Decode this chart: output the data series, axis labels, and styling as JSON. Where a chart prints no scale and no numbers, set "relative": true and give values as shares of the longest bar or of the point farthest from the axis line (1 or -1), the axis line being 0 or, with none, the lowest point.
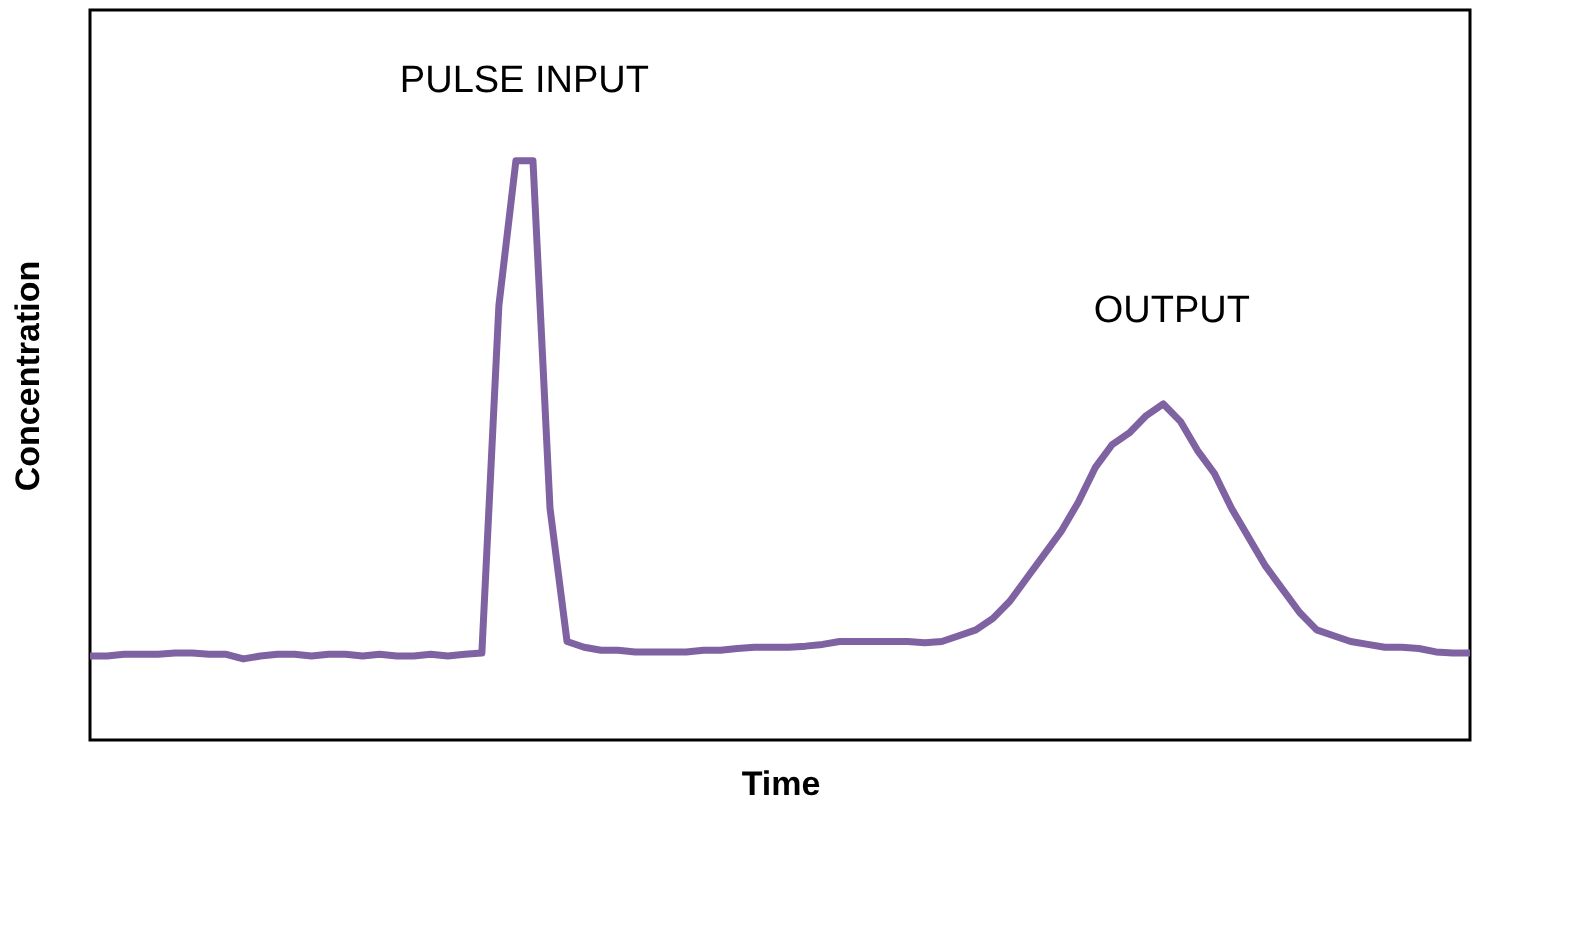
{
  "chart_data": {
    "type": "line",
    "relative": true,
    "xlabel": "Time",
    "ylabel": "Concentration",
    "color": "#7f62a1",
    "grid": false,
    "annotations": [
      "PULSE INPUT",
      "OUTPUT"
    ],
    "categories": [
      null,
      null,
      null,
      null,
      null,
      null,
      null,
      null,
      null,
      null,
      null,
      null,
      null,
      null,
      null,
      null,
      null,
      null,
      null,
      null,
      null,
      null,
      null,
      null,
      null,
      null,
      null,
      null,
      null,
      null,
      null,
      null,
      null,
      null,
      null,
      null,
      null,
      null,
      null,
      null,
      null,
      null,
      null,
      null,
      null,
      null,
      null,
      null,
      null,
      null,
      null,
      null,
      null,
      null,
      null,
      null,
      null,
      null,
      null,
      null,
      null,
      null,
      null,
      null,
      null,
      null,
      null,
      null,
      null,
      null,
      null,
      null,
      null,
      null,
      null,
      null,
      null,
      null,
      null,
      null,
      null,
      null
    ],
    "values": [
      0.145,
      0.145,
      0.148,
      0.148,
      0.148,
      0.15,
      0.15,
      0.148,
      0.148,
      0.14,
      0.145,
      0.148,
      0.148,
      0.145,
      0.148,
      0.148,
      0.145,
      0.148,
      0.145,
      0.145,
      0.148,
      0.145,
      0.148,
      0.15,
      0.75,
      1,
      1,
      0.4,
      0.17,
      0.16,
      0.155,
      0.155,
      0.152,
      0.152,
      0.152,
      0.152,
      0.155,
      0.155,
      0.158,
      0.16,
      0.16,
      0.16,
      0.162,
      0.165,
      0.17,
      0.17,
      0.17,
      0.17,
      0.17,
      0.168,
      0.17,
      0.18,
      0.19,
      0.21,
      0.24,
      0.28,
      0.32,
      0.36,
      0.41,
      0.47,
      0.51,
      0.53,
      0.56,
      0.58,
      0.55,
      0.5,
      0.46,
      0.4,
      0.35,
      0.3,
      0.26,
      0.22,
      0.19,
      0.18,
      0.17,
      0.165,
      0.16,
      0.16,
      0.158,
      0.152,
      0.15,
      0.15
    ]
  }
}
